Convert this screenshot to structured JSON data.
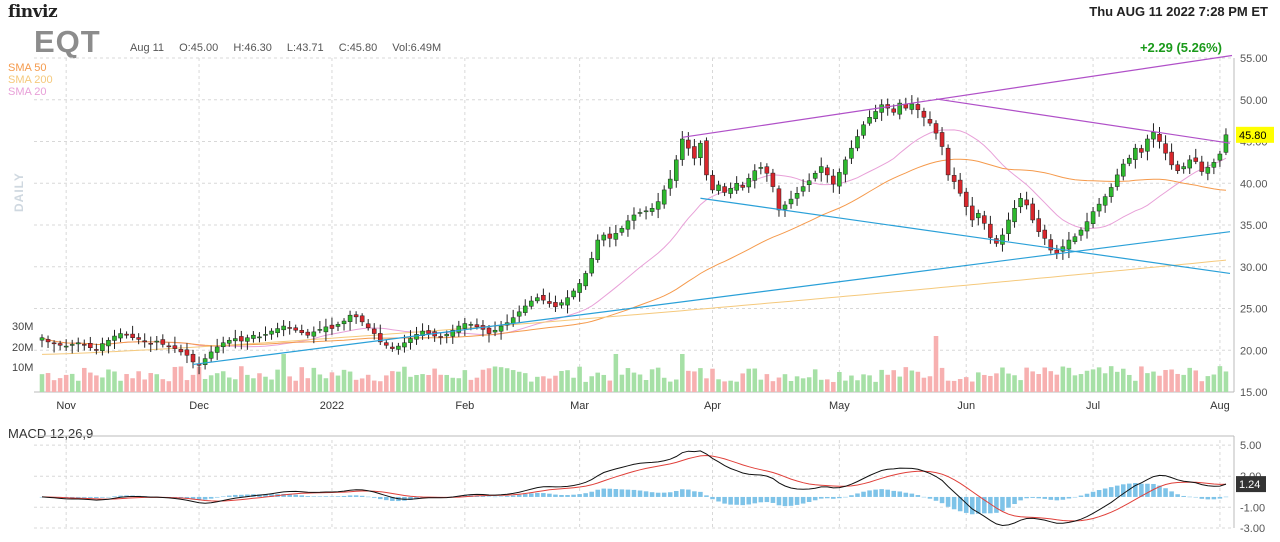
{
  "header": {
    "logo": "finviz",
    "datetime": "Thu AUG 11 2022 7:28 PM ET",
    "ticker": "EQT",
    "date": "Aug 11",
    "open": "O:45.00",
    "high": "H:46.30",
    "low": "L:43.71",
    "close": "C:45.80",
    "volume": "Vol:6.49M",
    "change": "+2.29 (5.26%)"
  },
  "legend": [
    {
      "label": "SMA 50",
      "color": "#f59a4c"
    },
    {
      "label": "SMA 200",
      "color": "#f5c97c"
    },
    {
      "label": "SMA 20",
      "color": "#e8a0d8"
    }
  ],
  "side_label": "DAILY",
  "macd_label": "MACD 12,26,9",
  "chart_data": [
    {
      "type": "candlestick",
      "title": "EQT",
      "y_axis_ticks": [
        "55.00",
        "50.00",
        "45.00",
        "40.00",
        "35.00",
        "30.00",
        "25.00",
        "20.00",
        "15.00"
      ],
      "ylim": [
        15,
        55
      ],
      "x_tick_labels": [
        "Nov",
        "Dec",
        "2022",
        "Feb",
        "Mar",
        "Apr",
        "May",
        "Jun",
        "Jul",
        "Aug"
      ],
      "last_price_label": "45.80",
      "volume_ticks": [
        "30M",
        "20M",
        "10M"
      ],
      "closes": [
        21.5,
        21.0,
        20.8,
        20.6,
        20.5,
        20.7,
        20.9,
        20.6,
        20.3,
        20.0,
        20.8,
        21.2,
        21.7,
        22.0,
        21.8,
        21.5,
        21.3,
        21.0,
        20.8,
        21.1,
        20.7,
        20.5,
        20.2,
        19.8,
        19.4,
        18.6,
        18.2,
        19.0,
        19.8,
        20.4,
        20.9,
        21.2,
        21.4,
        21.1,
        21.5,
        21.8,
        21.6,
        21.9,
        22.3,
        22.6,
        22.9,
        22.7,
        22.4,
        22.1,
        21.8,
        22.2,
        22.5,
        22.8,
        22.6,
        23.1,
        23.5,
        24.2,
        24.0,
        23.4,
        22.7,
        22.0,
        21.0,
        20.6,
        20.2,
        20.5,
        20.9,
        21.4,
        21.9,
        22.3,
        22.0,
        21.7,
        21.6,
        21.9,
        22.4,
        22.9,
        23.2,
        23.1,
        22.8,
        22.5,
        22.0,
        22.4,
        22.9,
        23.3,
        23.9,
        24.6,
        25.3,
        25.9,
        26.3,
        26.0,
        25.6,
        25.2,
        25.7,
        26.3,
        27.1,
        28.0,
        29.2,
        31.0,
        33.2,
        33.8,
        33.4,
        34.0,
        34.6,
        35.5,
        36.2,
        36.5,
        36.7,
        37.0,
        37.8,
        39.2,
        40.5,
        42.8,
        45.3,
        44.2,
        43.0,
        44.8,
        41.0,
        39.2,
        39.8,
        38.9,
        39.4,
        40.0,
        39.5,
        40.6,
        41.5,
        41.9,
        41.2,
        39.6,
        36.8,
        37.4,
        38.1,
        38.8,
        39.6,
        40.3,
        41.2,
        42.0,
        41.0,
        39.9,
        41.3,
        42.8,
        44.2,
        45.6,
        47.0,
        47.9,
        48.6,
        49.4,
        49.0,
        48.5,
        49.6,
        49.0,
        49.5,
        48.8,
        47.9,
        47.2,
        46.0,
        44.4,
        41.0,
        40.2,
        38.8,
        37.2,
        35.6,
        36.4,
        35.2,
        33.5,
        32.8,
        33.8,
        35.6,
        37.0,
        38.2,
        37.4,
        35.6,
        34.2,
        33.4,
        32.0,
        31.6,
        32.4,
        33.2,
        33.6,
        34.4,
        35.4,
        36.6,
        37.5,
        38.4,
        39.5,
        41.0,
        42.3,
        43.0,
        44.2,
        43.7,
        45.3,
        46.1,
        45.0,
        43.6,
        42.2,
        41.5,
        42.0,
        42.8,
        42.6,
        41.4,
        41.9,
        42.5,
        43.5,
        45.8
      ],
      "sma": [
        {
          "name": "SMA 50",
          "start": 20.0,
          "mid": 33.0,
          "end": 40.6
        },
        {
          "name": "SMA 200",
          "start": 19.5,
          "end": 30.8
        },
        {
          "name": "SMA 20",
          "start": 20.5,
          "end": 41.0
        }
      ],
      "macd": {
        "y_axis_ticks": [
          "5.00",
          "2.00",
          "-1.00",
          "-3.00"
        ],
        "ylim": [
          -3,
          5.5
        ],
        "last_value_label": "1.24"
      }
    }
  ]
}
